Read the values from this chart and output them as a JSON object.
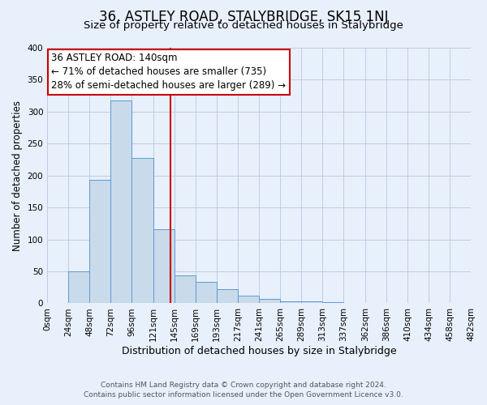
{
  "title": "36, ASTLEY ROAD, STALYBRIDGE, SK15 1NJ",
  "subtitle": "Size of property relative to detached houses in Stalybridge",
  "xlabel": "Distribution of detached houses by size in Stalybridge",
  "ylabel": "Number of detached properties",
  "bin_edges": [
    0,
    24,
    48,
    72,
    96,
    121,
    145,
    169,
    193,
    217,
    241,
    265,
    289,
    313,
    337,
    362,
    386,
    410,
    434,
    458,
    482
  ],
  "bin_labels": [
    "0sqm",
    "24sqm",
    "48sqm",
    "72sqm",
    "96sqm",
    "121sqm",
    "145sqm",
    "169sqm",
    "193sqm",
    "217sqm",
    "241sqm",
    "265sqm",
    "289sqm",
    "313sqm",
    "337sqm",
    "362sqm",
    "386sqm",
    "410sqm",
    "434sqm",
    "458sqm",
    "482sqm"
  ],
  "bar_heights": [
    1,
    50,
    193,
    317,
    227,
    116,
    44,
    34,
    22,
    12,
    7,
    3,
    3,
    2,
    1,
    1,
    0,
    0,
    1,
    0
  ],
  "bar_color": "#c9daea",
  "bar_edge_color": "#5b9bd5",
  "property_line_x": 140,
  "property_line_color": "#cc0000",
  "annotation_line1": "36 ASTLEY ROAD: 140sqm",
  "annotation_line2": "← 71% of detached houses are smaller (735)",
  "annotation_line3": "28% of semi-detached houses are larger (289) →",
  "annotation_box_color": "#ffffff",
  "annotation_box_edge_color": "#cc0000",
  "ylim": [
    0,
    400
  ],
  "yticks": [
    0,
    50,
    100,
    150,
    200,
    250,
    300,
    350,
    400
  ],
  "xlim_max": 482,
  "background_color": "#e8f0fb",
  "plot_bg_color": "#e8f0fb",
  "footer_line1": "Contains HM Land Registry data © Crown copyright and database right 2024.",
  "footer_line2": "Contains public sector information licensed under the Open Government Licence v3.0.",
  "title_fontsize": 12,
  "subtitle_fontsize": 9.5,
  "xlabel_fontsize": 9,
  "ylabel_fontsize": 8.5,
  "tick_fontsize": 7.5,
  "footer_fontsize": 6.5,
  "annotation_fontsize": 8.5
}
